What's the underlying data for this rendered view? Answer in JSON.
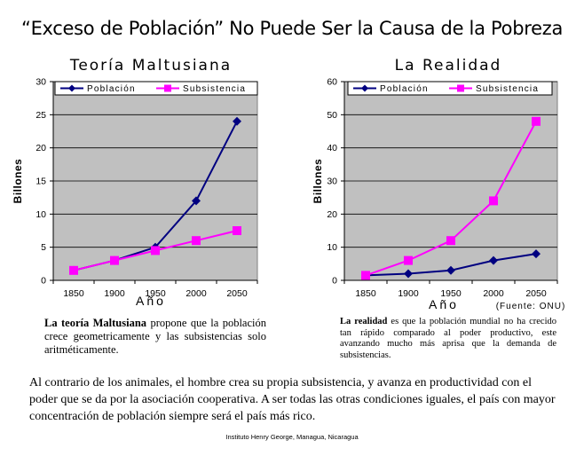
{
  "title": "“Exceso de Población” No Puede Ser la Causa de la Pobreza",
  "chart_data": [
    {
      "type": "line",
      "title": "Teoría Maltusiana",
      "xlabel": "Año",
      "ylabel": "Billones",
      "x": [
        1850,
        1900,
        1950,
        2000,
        2050
      ],
      "ylim": [
        0,
        30
      ],
      "yticks": [
        0,
        5,
        10,
        15,
        20,
        25,
        30
      ],
      "grid": true,
      "legend_position": "top",
      "series": [
        {
          "name": "Población",
          "values": [
            1.5,
            3,
            5,
            12,
            24
          ],
          "color": "#000080",
          "marker": "diamond"
        },
        {
          "name": "Subsistencia",
          "values": [
            1.5,
            3,
            4.5,
            6,
            7.5
          ],
          "color": "#ff00ff",
          "marker": "square"
        }
      ]
    },
    {
      "type": "line",
      "title": "La Realidad",
      "xlabel": "Año",
      "ylabel": "Billones",
      "x": [
        1850,
        1900,
        1950,
        2000,
        2050
      ],
      "ylim": [
        0,
        60
      ],
      "yticks": [
        0,
        10,
        20,
        30,
        40,
        50,
        60
      ],
      "grid": true,
      "legend_position": "top",
      "annotation": "(Fuente: ONU)",
      "series": [
        {
          "name": "Población",
          "values": [
            1.5,
            2,
            3,
            6,
            8
          ],
          "color": "#000080",
          "marker": "diamond"
        },
        {
          "name": "Subsistencia",
          "values": [
            1.5,
            6,
            12,
            24,
            48
          ],
          "color": "#ff00ff",
          "marker": "square"
        }
      ]
    }
  ],
  "captions": {
    "left_bold": "La teoría Maltusiana",
    "left_rest": " propone que la población crece geometricamente y las subsistencias solo aritméticamente.",
    "right_bold": "La realidad",
    "right_rest": " es que la población mundial no ha crecido tan rápido comparado al poder productivo, este avanzando mucho más aprisa que la demanda de subsistencias."
  },
  "bottom_paragraph": "Al contrario de los animales, el hombre crea su propia subsistencia, y avanza en productividad con el poder que se da por la asociación cooperativa.  A ser todas las otras condiciones iguales, el país con mayor concentración de población siempre será el país más rico.",
  "credit": "Instituto Henry George, Managua, Nicaragua",
  "colors": {
    "plot_bg": "#c0c0c0",
    "poblacion": "#000080",
    "subsistencia": "#ff00ff"
  }
}
